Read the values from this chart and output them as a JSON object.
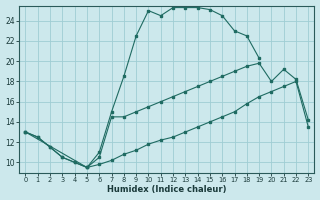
{
  "xlabel": "Humidex (Indice chaleur)",
  "bg_color": "#cce8ec",
  "grid_color": "#9fcdd4",
  "line_color": "#1f6b62",
  "xlim": [
    -0.5,
    23.5
  ],
  "ylim": [
    9,
    25.5
  ],
  "xticks": [
    0,
    1,
    2,
    3,
    4,
    5,
    6,
    7,
    8,
    9,
    10,
    11,
    12,
    13,
    14,
    15,
    16,
    17,
    18,
    19,
    20,
    21,
    22,
    23
  ],
  "yticks": [
    10,
    12,
    14,
    16,
    18,
    20,
    22,
    24
  ],
  "line1_x": [
    0,
    1,
    2,
    3,
    4,
    5,
    6,
    7,
    8,
    9,
    10,
    11,
    12,
    13,
    14,
    15,
    16,
    17,
    18,
    19,
    20,
    21,
    22,
    23
  ],
  "line1_y": [
    13,
    12.5,
    11.5,
    10.5,
    10,
    9.5,
    9.8,
    10.2,
    10.8,
    11.2,
    11.8,
    12.2,
    12.5,
    13.0,
    13.5,
    14.0,
    14.5,
    15.0,
    15.8,
    16.5,
    17.0,
    17.5,
    18.0,
    13.5
  ],
  "line2_x": [
    0,
    1,
    2,
    3,
    4,
    5,
    6,
    7,
    8,
    9,
    10,
    11,
    12,
    13,
    14,
    15,
    16,
    17,
    18,
    19
  ],
  "line2_y": [
    13,
    12.5,
    11.5,
    10.5,
    10,
    9.5,
    11.0,
    15.0,
    18.5,
    22.5,
    25.0,
    24.5,
    25.3,
    25.3,
    25.3,
    25.1,
    24.5,
    23.0,
    22.5,
    20.3
  ],
  "line3_x": [
    0,
    5,
    6,
    7,
    8,
    9,
    10,
    11,
    12,
    13,
    14,
    15,
    16,
    17,
    18,
    19,
    20,
    21,
    22,
    23
  ],
  "line3_y": [
    13,
    9.5,
    10.5,
    14.5,
    14.5,
    15.0,
    15.5,
    16.0,
    16.5,
    17.0,
    17.5,
    18.0,
    18.5,
    19.0,
    19.5,
    19.8,
    18.0,
    19.2,
    18.2,
    14.2
  ]
}
